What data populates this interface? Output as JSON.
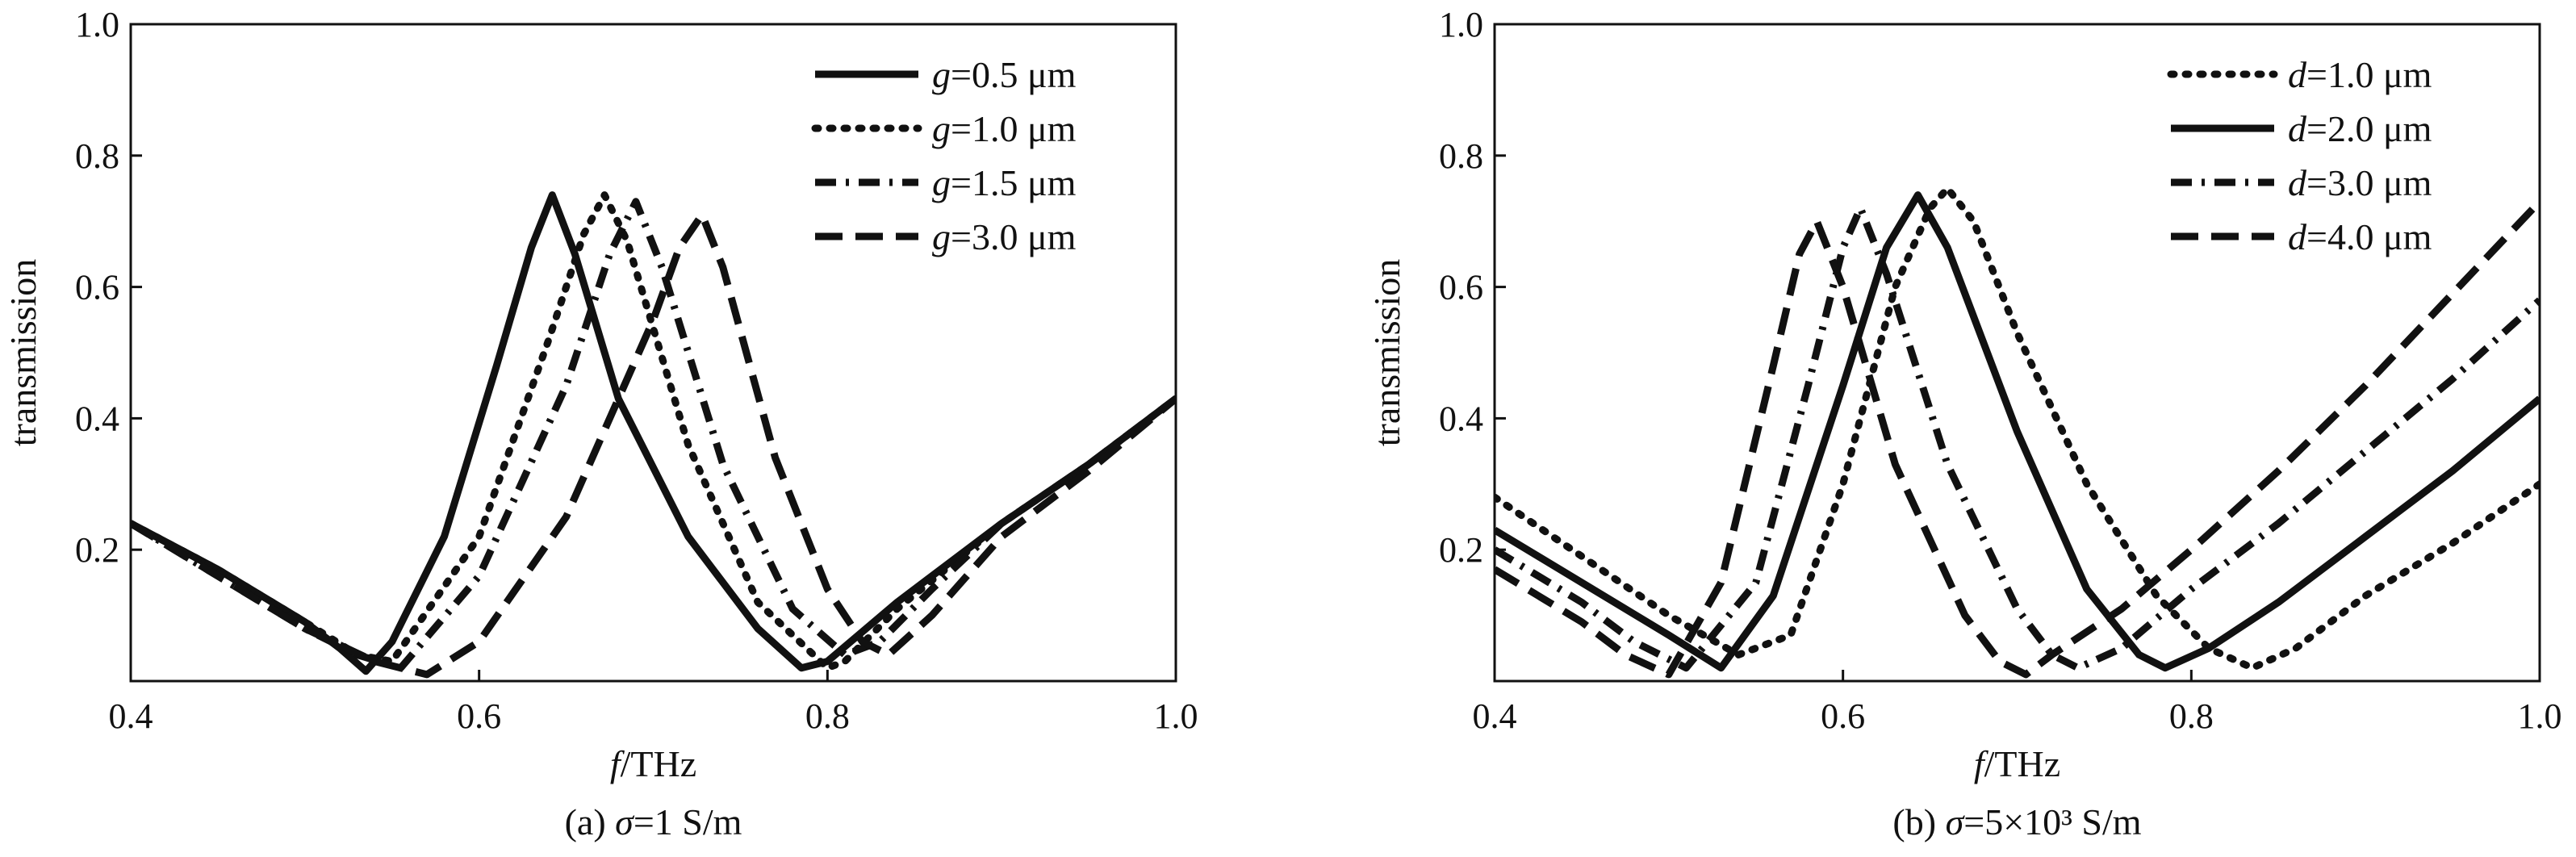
{
  "chart_data": [
    {
      "id": "a",
      "type": "line",
      "caption": {
        "prefix": "(a) ",
        "symbol": "σ",
        "rest": "=1 S/m"
      },
      "xlabel": {
        "italic": "f",
        "rest": "/THz"
      },
      "ylabel": "transmission",
      "xlim": [
        0.4,
        1.0
      ],
      "ylim": [
        0.0,
        1.0
      ],
      "xticks": [
        "0.4",
        "0.6",
        "0.8",
        "1.0"
      ],
      "yticks": [
        "0.2",
        "0.4",
        "0.6",
        "0.8",
        "1.0"
      ],
      "grid": false,
      "legend_position": "top-right",
      "series": [
        {
          "legend": {
            "italic": "g",
            "rest": "=0.5 μm"
          },
          "dash": "solid",
          "x": [
            0.4,
            0.45,
            0.5,
            0.52,
            0.535,
            0.55,
            0.58,
            0.61,
            0.63,
            0.642,
            0.655,
            0.68,
            0.72,
            0.76,
            0.785,
            0.8,
            0.84,
            0.9,
            0.95,
            1.0
          ],
          "y": [
            0.24,
            0.17,
            0.09,
            0.05,
            0.015,
            0.06,
            0.22,
            0.48,
            0.66,
            0.74,
            0.65,
            0.43,
            0.22,
            0.08,
            0.02,
            0.03,
            0.12,
            0.24,
            0.33,
            0.43
          ]
        },
        {
          "legend": {
            "italic": "g",
            "rest": "=1.0 μm"
          },
          "dash": "dot",
          "x": [
            0.4,
            0.45,
            0.5,
            0.53,
            0.55,
            0.6,
            0.64,
            0.66,
            0.672,
            0.685,
            0.72,
            0.76,
            0.8,
            0.81,
            0.84,
            0.9,
            0.95,
            1.0
          ],
          "y": [
            0.24,
            0.17,
            0.09,
            0.04,
            0.03,
            0.22,
            0.52,
            0.68,
            0.74,
            0.67,
            0.36,
            0.12,
            0.02,
            0.03,
            0.11,
            0.24,
            0.33,
            0.43
          ]
        },
        {
          "legend": {
            "italic": "g",
            "rest": "=1.5 μm"
          },
          "dash": "dashdot",
          "x": [
            0.4,
            0.45,
            0.5,
            0.53,
            0.555,
            0.6,
            0.65,
            0.675,
            0.69,
            0.705,
            0.74,
            0.78,
            0.81,
            0.83,
            0.86,
            0.9,
            0.95,
            1.0
          ],
          "y": [
            0.24,
            0.16,
            0.08,
            0.04,
            0.02,
            0.16,
            0.45,
            0.65,
            0.73,
            0.63,
            0.33,
            0.11,
            0.04,
            0.06,
            0.14,
            0.24,
            0.33,
            0.43
          ]
        },
        {
          "legend": {
            "italic": "g",
            "rest": "=3.0 μm"
          },
          "dash": "dash",
          "x": [
            0.4,
            0.45,
            0.5,
            0.54,
            0.57,
            0.6,
            0.65,
            0.7,
            0.715,
            0.728,
            0.74,
            0.77,
            0.8,
            0.82,
            0.835,
            0.86,
            0.9,
            0.95,
            1.0
          ],
          "y": [
            0.24,
            0.16,
            0.08,
            0.03,
            0.01,
            0.06,
            0.25,
            0.55,
            0.66,
            0.71,
            0.63,
            0.34,
            0.14,
            0.06,
            0.04,
            0.1,
            0.22,
            0.32,
            0.43
          ]
        }
      ]
    },
    {
      "id": "b",
      "type": "line",
      "caption": {
        "prefix": "(b) ",
        "symbol": "σ",
        "rest": "=5×10³ S/m"
      },
      "xlabel": {
        "italic": "f",
        "rest": "/THz"
      },
      "ylabel": "transmission",
      "xlim": [
        0.4,
        1.0
      ],
      "ylim": [
        0.0,
        1.0
      ],
      "xticks": [
        "0.4",
        "0.6",
        "0.8",
        "1.0"
      ],
      "yticks": [
        "0.2",
        "0.4",
        "0.6",
        "0.8",
        "1.0"
      ],
      "grid": false,
      "legend_position": "top-right",
      "series": [
        {
          "legend": {
            "italic": "d",
            "rest": "=1.0 μm"
          },
          "dash": "dot",
          "x": [
            0.4,
            0.45,
            0.5,
            0.54,
            0.57,
            0.6,
            0.63,
            0.65,
            0.66,
            0.675,
            0.7,
            0.74,
            0.78,
            0.81,
            0.835,
            0.86,
            0.9,
            0.95,
            1.0
          ],
          "y": [
            0.28,
            0.19,
            0.1,
            0.04,
            0.07,
            0.3,
            0.6,
            0.72,
            0.75,
            0.7,
            0.53,
            0.3,
            0.13,
            0.05,
            0.02,
            0.05,
            0.13,
            0.21,
            0.3
          ]
        },
        {
          "legend": {
            "italic": "d",
            "rest": "=2.0 μm"
          },
          "dash": "solid",
          "x": [
            0.4,
            0.45,
            0.5,
            0.53,
            0.56,
            0.6,
            0.625,
            0.643,
            0.66,
            0.7,
            0.74,
            0.77,
            0.785,
            0.81,
            0.85,
            0.9,
            0.95,
            1.0
          ],
          "y": [
            0.23,
            0.15,
            0.07,
            0.02,
            0.13,
            0.45,
            0.66,
            0.74,
            0.66,
            0.38,
            0.14,
            0.04,
            0.02,
            0.05,
            0.12,
            0.22,
            0.32,
            0.43
          ]
        },
        {
          "legend": {
            "italic": "d",
            "rest": "=3.0 μm"
          },
          "dash": "dashdot",
          "x": [
            0.4,
            0.45,
            0.48,
            0.51,
            0.55,
            0.58,
            0.6,
            0.61,
            0.625,
            0.66,
            0.7,
            0.72,
            0.735,
            0.76,
            0.8,
            0.85,
            0.9,
            0.95,
            1.0
          ],
          "y": [
            0.2,
            0.12,
            0.06,
            0.02,
            0.15,
            0.45,
            0.66,
            0.72,
            0.62,
            0.33,
            0.11,
            0.04,
            0.02,
            0.05,
            0.14,
            0.24,
            0.35,
            0.46,
            0.58
          ]
        },
        {
          "legend": {
            "italic": "d",
            "rest": "=4.0 μm"
          },
          "dash": "dash",
          "x": [
            0.4,
            0.45,
            0.475,
            0.5,
            0.53,
            0.56,
            0.575,
            0.585,
            0.6,
            0.63,
            0.67,
            0.69,
            0.705,
            0.72,
            0.76,
            0.8,
            0.85,
            0.9,
            0.95,
            1.0
          ],
          "y": [
            0.17,
            0.09,
            0.04,
            0.01,
            0.15,
            0.48,
            0.65,
            0.7,
            0.6,
            0.33,
            0.1,
            0.03,
            0.01,
            0.04,
            0.11,
            0.2,
            0.32,
            0.45,
            0.59,
            0.73
          ]
        }
      ]
    }
  ]
}
